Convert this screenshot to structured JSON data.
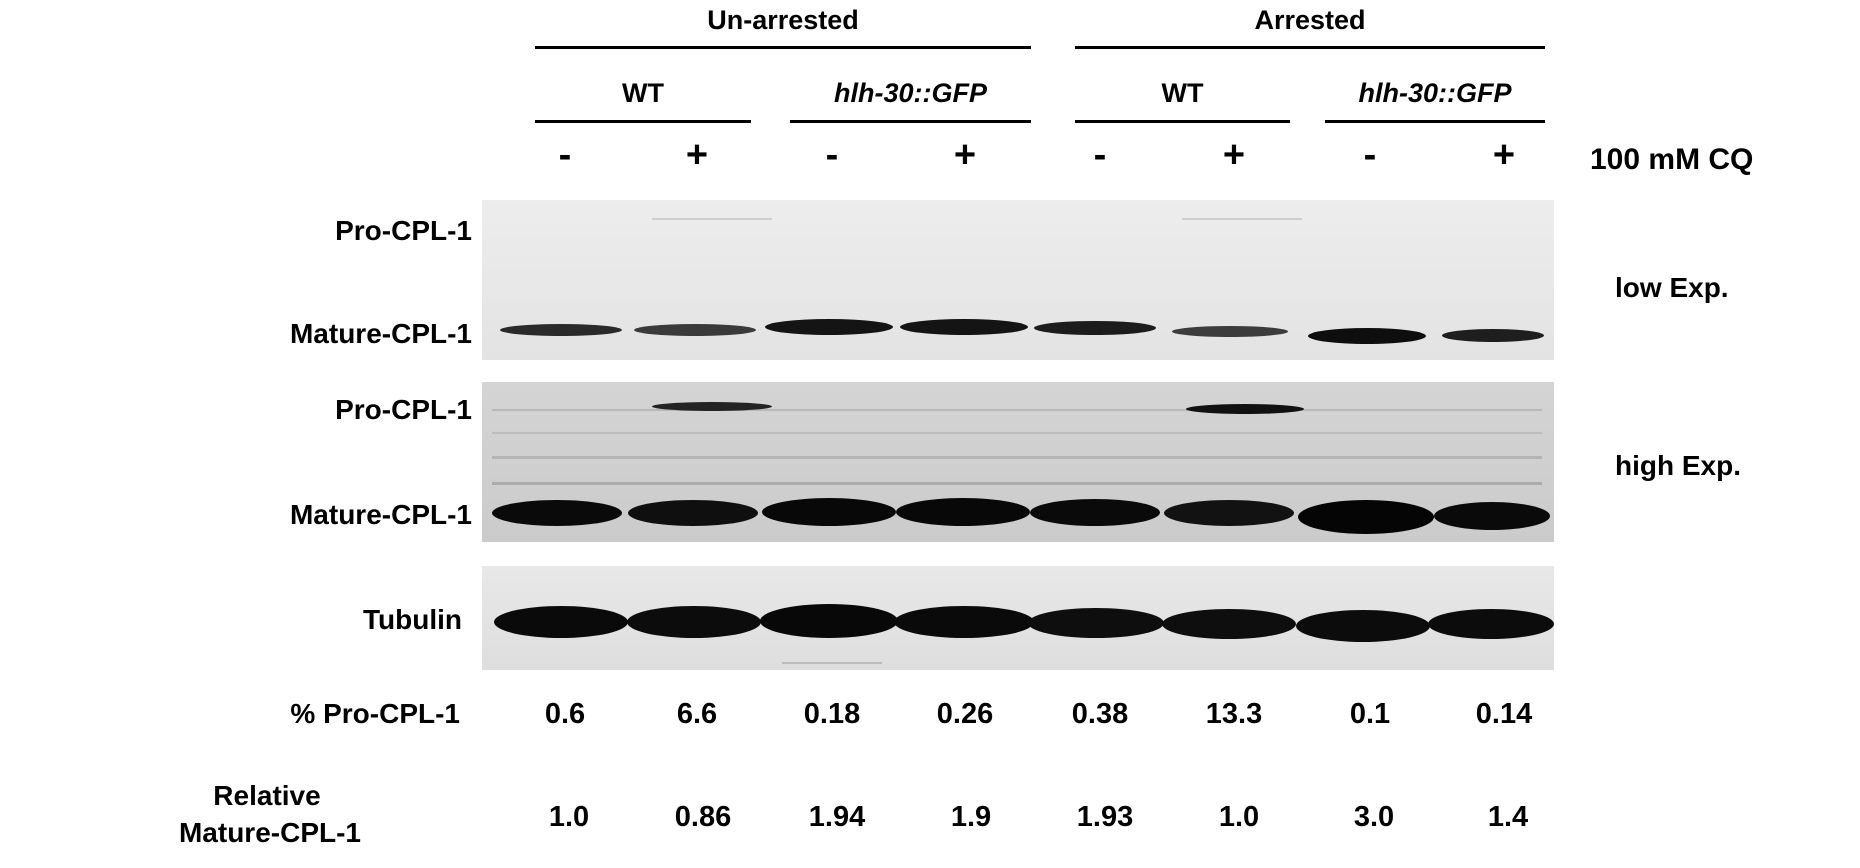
{
  "groups": {
    "unarrested": "Un-arrested",
    "arrested": "Arrested"
  },
  "strains": [
    "WT",
    "hlh-30::GFP",
    "WT",
    "hlh-30::GFP"
  ],
  "treatment_signs": [
    "-",
    "+",
    "-",
    "+",
    "-",
    "+",
    "-",
    "+"
  ],
  "treatment_label": "100 mM CQ",
  "blot_labels": {
    "low_pro": "Pro-CPL-1",
    "low_mature": "Mature-CPL-1",
    "high_pro": "Pro-CPL-1",
    "high_mature": "Mature-CPL-1",
    "tubulin": "Tubulin"
  },
  "exposures": {
    "low": "low Exp.",
    "high": "high Exp."
  },
  "quant": {
    "pro_label": "% Pro-CPL-1",
    "pro_values": [
      "0.6",
      "6.6",
      "0.18",
      "0.26",
      "0.38",
      "13.3",
      "0.1",
      "0.14"
    ],
    "mature_label_line1": "Relative",
    "mature_label_line2": "Mature-CPL-1",
    "mature_values": [
      "1.0",
      "0.86",
      "1.94",
      "1.9",
      "1.93",
      "1.0",
      "3.0",
      "1.4"
    ]
  },
  "colors": {
    "blot_bg_low": "#e6e6e6",
    "blot_bg_high": "#d2d2d2",
    "band_dark": "#111111"
  }
}
